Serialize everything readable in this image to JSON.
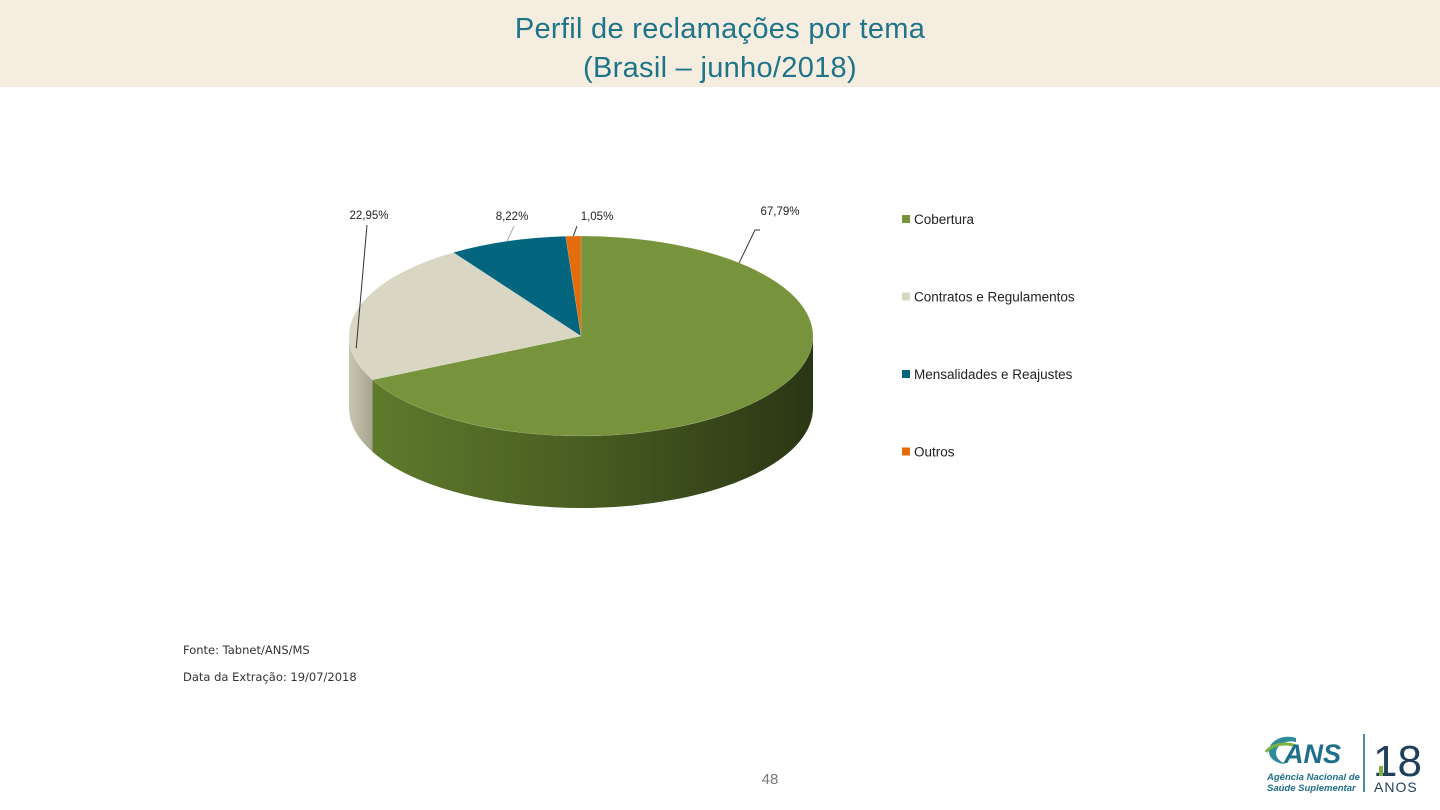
{
  "header": {
    "title_line1": "Perfil de reclamações por tema",
    "title_line2": "(Brasil – junho/2018)"
  },
  "chart_data": {
    "type": "pie",
    "style": "3d",
    "title": "",
    "categories": [
      "Cobertura",
      "Contratos e Regulamentos",
      "Mensalidades e Reajustes",
      "Outros"
    ],
    "values": [
      67.79,
      22.95,
      8.22,
      1.05
    ],
    "data_labels": [
      "67,79%",
      "22,95%",
      "8,22%",
      "1,05%"
    ],
    "colors": [
      "#77933c",
      "#d9d7c3",
      "#04657f",
      "#e46c0a"
    ],
    "legend": {
      "placement": "right",
      "entries": [
        "Cobertura",
        "Contratos e Regulamentos",
        "Mensalidades e Reajustes",
        "Outros"
      ]
    }
  },
  "footer": {
    "source": "Fonte: Tabnet/ANS/MS",
    "extraction_date": "Data da Extração: 19/07/2018",
    "page_number": "48"
  },
  "logo": {
    "brand": "ANS",
    "line1": "Agência Nacional de",
    "line2": "Saúde Suplementar",
    "anniversary_number": "18",
    "anniversary_word": "ANOS"
  }
}
